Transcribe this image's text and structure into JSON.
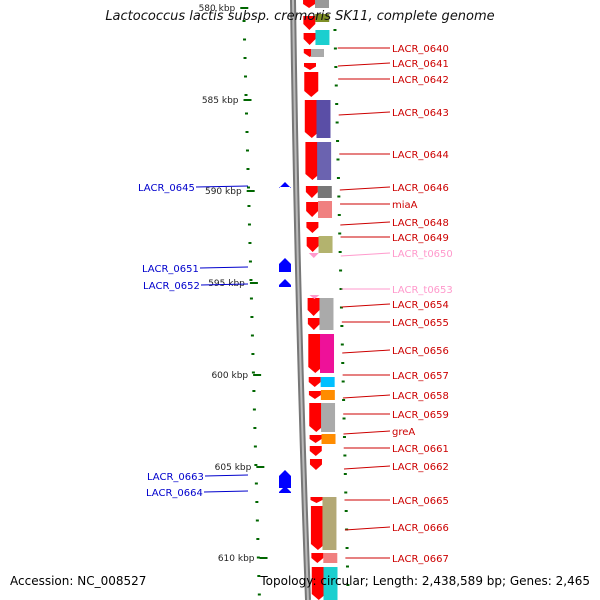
{
  "title": "Lactococcus lactis subsp. cremoris SK11, complete genome",
  "accession": "Accession: NC_008527",
  "topology": "Topology: circular; Length: 2,438,589 bp; Genes: 2,465",
  "kbp_labels": [
    "580 kbp",
    "585 kbp",
    "590 kbp",
    "595 kbp",
    "600 kbp",
    "605 kbp",
    "610 kbp"
  ],
  "colors": {
    "gene_red": "#ff0000",
    "trna_pink": "#ff99cc",
    "reverse_blue": "#0000ff",
    "tick_green": "#006600",
    "backbone_gray": "#888888"
  },
  "right_labels": [
    {
      "text": "LACR_0640",
      "color": "#cc0000"
    },
    {
      "text": "LACR_0641",
      "color": "#cc0000"
    },
    {
      "text": "LACR_0642",
      "color": "#cc0000"
    },
    {
      "text": "LACR_0643",
      "color": "#cc0000"
    },
    {
      "text": "LACR_0644",
      "color": "#cc0000"
    },
    {
      "text": "LACR_0646",
      "color": "#cc0000"
    },
    {
      "text": "miaA",
      "color": "#cc0000"
    },
    {
      "text": "LACR_0648",
      "color": "#cc0000"
    },
    {
      "text": "LACR_0649",
      "color": "#cc0000"
    },
    {
      "text": "LACR_t0650",
      "color": "#ff99cc"
    },
    {
      "text": "LACR_t0653",
      "color": "#ff99cc"
    },
    {
      "text": "LACR_0654",
      "color": "#cc0000"
    },
    {
      "text": "LACR_0655",
      "color": "#cc0000"
    },
    {
      "text": "LACR_0656",
      "color": "#cc0000"
    },
    {
      "text": "LACR_0657",
      "color": "#cc0000"
    },
    {
      "text": "LACR_0658",
      "color": "#cc0000"
    },
    {
      "text": "LACR_0659",
      "color": "#cc0000"
    },
    {
      "text": "greA",
      "color": "#cc0000"
    },
    {
      "text": "LACR_0661",
      "color": "#cc0000"
    },
    {
      "text": "LACR_0662",
      "color": "#cc0000"
    },
    {
      "text": "LACR_0665",
      "color": "#cc0000"
    },
    {
      "text": "LACR_0666",
      "color": "#cc0000"
    },
    {
      "text": "LACR_0667",
      "color": "#cc0000"
    }
  ],
  "left_labels": [
    {
      "text": "LACR_0645",
      "color": "#0000cc"
    },
    {
      "text": "LACR_0651",
      "color": "#0000cc"
    },
    {
      "text": "LACR_0652",
      "color": "#0000cc"
    },
    {
      "text": "LACR_0663",
      "color": "#0000cc"
    },
    {
      "text": "LACR_0664",
      "color": "#0000cc"
    }
  ],
  "cog_colors": [
    "#999999",
    "#7f8f26",
    "#1bcfcf",
    "#5a4ea6",
    "#6b63b0",
    "#777777",
    "#f08080",
    "#b3b36e",
    "#aaaaaa",
    "#ee1199",
    "#00bfff",
    "#ff8c00",
    "#b3a875",
    "#ff8c00"
  ]
}
